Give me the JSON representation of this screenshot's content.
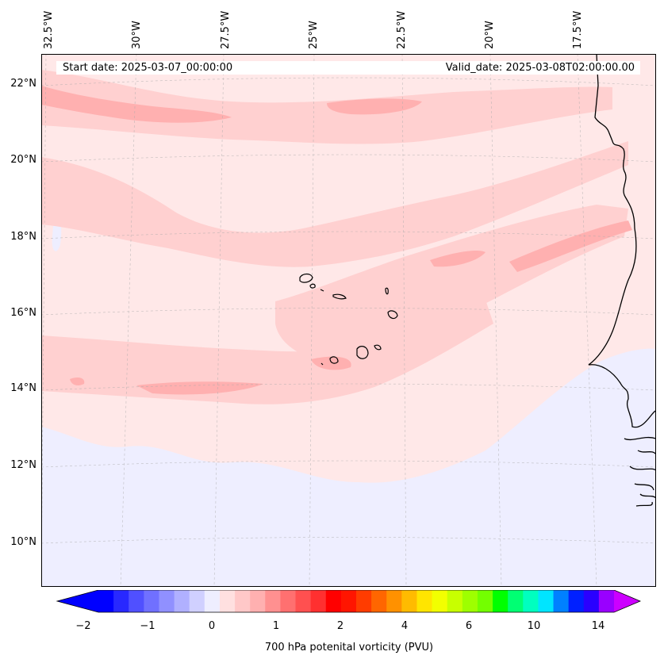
{
  "map": {
    "lon_labels": [
      "32.5°W",
      "30°W",
      "27.5°W",
      "25°W",
      "22.5°W",
      "20°W",
      "17.5°W"
    ],
    "lat_labels": [
      "22°N",
      "20°N",
      "18°N",
      "16°N",
      "14°N",
      "12°N",
      "10°N"
    ],
    "start_date": "Start date: 2025-03-07_00:00:00",
    "valid_date": "Valid_date: 2025-03-08T02:00:00.00",
    "field_colors": {
      "background": "#ffe8e8",
      "band_light": "#ffd0d0",
      "band_mid": "#ffb0b0",
      "negative": "#eeeeff"
    }
  },
  "colorbar": {
    "title": "700 hPa potenital vorticity (PVU)",
    "ticks": [
      "−2",
      "−1",
      "0",
      "1",
      "2",
      "4",
      "6",
      "10",
      "14"
    ],
    "colors": [
      "#0000ff",
      "#2828ff",
      "#5050ff",
      "#7070ff",
      "#9090ff",
      "#b0b0ff",
      "#d0d0ff",
      "#eeeeff",
      "#ffe0e0",
      "#ffc8c8",
      "#ffb0b0",
      "#ff9090",
      "#ff7070",
      "#ff5050",
      "#ff3030",
      "#ff0000",
      "#ff1500",
      "#ff3c00",
      "#ff6600",
      "#ff9100",
      "#ffbb00",
      "#ffe500",
      "#f2ff00",
      "#c8ff00",
      "#9eff00",
      "#73ff00",
      "#00ff00",
      "#00ff73",
      "#00ffbf",
      "#00e5ff",
      "#0080ff",
      "#0020ff",
      "#2a00ff",
      "#9900ff"
    ],
    "end_min": "#0000ff",
    "end_max": "#cc00ff"
  }
}
